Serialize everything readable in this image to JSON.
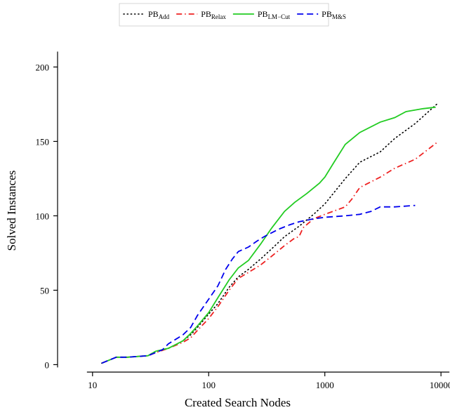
{
  "chart_data": {
    "type": "line",
    "xlabel": "Created Search Nodes",
    "ylabel": "Solved Instances",
    "xscale": "log",
    "xlim": [
      5,
      11000
    ],
    "ylim": [
      -5,
      212
    ],
    "xticks": [
      {
        "value": 10,
        "label": "10"
      },
      {
        "value": 100,
        "label": "100"
      },
      {
        "value": 1000,
        "label": "1000"
      },
      {
        "value": 10000,
        "label": "10000"
      }
    ],
    "yticks": [
      {
        "value": 0,
        "label": "0"
      },
      {
        "value": 50,
        "label": "50"
      },
      {
        "value": 100,
        "label": "100"
      },
      {
        "value": 150,
        "label": "150"
      },
      {
        "value": 200,
        "label": "200"
      }
    ],
    "grid": false,
    "legend_position": "top",
    "series": [
      {
        "name": "PB",
        "subscript": "Add",
        "color": "#000000",
        "dash": "dotted",
        "x": [
          12,
          16,
          20,
          30,
          35,
          45,
          60,
          70,
          80,
          100,
          120,
          150,
          180,
          220,
          280,
          350,
          450,
          600,
          800,
          1000,
          1500,
          2000,
          3000,
          4000,
          6000,
          9500
        ],
        "y": [
          1,
          5,
          5,
          6,
          9,
          11,
          16,
          20,
          25,
          34,
          41,
          52,
          59,
          64,
          71,
          78,
          86,
          93,
          101,
          108,
          125,
          136,
          143,
          152,
          162,
          176
        ]
      },
      {
        "name": "PB",
        "subscript": "Relax",
        "color": "#ee2222",
        "dash": "dashdot",
        "x": [
          12,
          16,
          20,
          30,
          35,
          45,
          60,
          70,
          80,
          100,
          120,
          150,
          180,
          220,
          280,
          350,
          450,
          550,
          600,
          650,
          800,
          1000,
          1500,
          1700,
          2000,
          3000,
          4000,
          6000,
          9500
        ],
        "y": [
          1,
          5,
          5,
          6,
          8,
          11,
          15,
          18,
          23,
          31,
          39,
          50,
          58,
          62,
          67,
          73,
          80,
          85,
          86,
          92,
          98,
          101,
          106,
          111,
          119,
          126,
          132,
          138,
          150
        ]
      },
      {
        "name": "PB",
        "subscript": "LM−Cut",
        "color": "#22cc22",
        "dash": "solid",
        "x": [
          12,
          16,
          20,
          30,
          35,
          45,
          60,
          70,
          80,
          100,
          120,
          150,
          180,
          220,
          280,
          350,
          450,
          550,
          700,
          900,
          1000,
          1200,
          1500,
          2000,
          3000,
          4000,
          5000,
          7000,
          9000
        ],
        "y": [
          1,
          5,
          5,
          6,
          9,
          11,
          16,
          21,
          26,
          35,
          45,
          57,
          65,
          70,
          81,
          92,
          103,
          109,
          115,
          122,
          126,
          136,
          148,
          156,
          163,
          166,
          170,
          172,
          173
        ]
      },
      {
        "name": "PB",
        "subscript": "M&S",
        "color": "#0000ee",
        "dash": "dashed",
        "x": [
          12,
          16,
          20,
          30,
          40,
          45,
          60,
          70,
          80,
          100,
          120,
          140,
          160,
          180,
          220,
          260,
          300,
          400,
          500,
          600,
          800,
          1000,
          1500,
          2000,
          2500,
          3000,
          4000,
          6000
        ],
        "y": [
          1,
          5,
          5,
          6,
          10,
          14,
          20,
          25,
          33,
          44,
          53,
          64,
          71,
          76,
          79,
          83,
          86,
          91,
          94,
          96,
          98,
          99,
          100,
          101,
          103,
          106,
          106,
          107
        ]
      }
    ]
  }
}
